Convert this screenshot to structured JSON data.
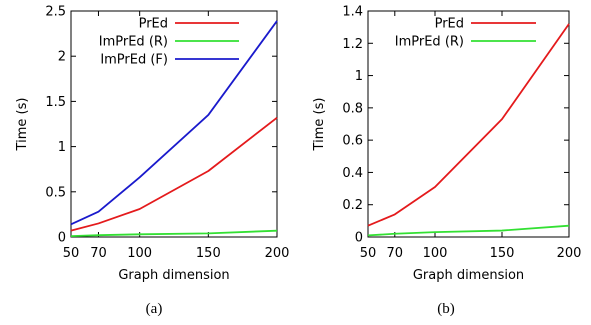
{
  "chart_data": [
    {
      "type": "line",
      "caption": "(a)",
      "xlabel": "Graph dimension",
      "ylabel": "Time (s)",
      "x": [
        50,
        70,
        100,
        150,
        200
      ],
      "xlim": [
        50,
        200
      ],
      "xticks": [
        50,
        70,
        100,
        150,
        200
      ],
      "ylim": [
        0,
        2.5
      ],
      "yticks": [
        "0",
        "0.5",
        "1",
        "1.5",
        "2",
        "2.5"
      ],
      "grid": false,
      "legend_position": "top-left",
      "series": [
        {
          "name": "PrEd",
          "color": "#e41a1c",
          "values": [
            0.07,
            0.15,
            0.31,
            0.73,
            1.32
          ]
        },
        {
          "name": "ImPrEd (R)",
          "color": "#33e033",
          "values": [
            0.01,
            0.02,
            0.03,
            0.04,
            0.07
          ]
        },
        {
          "name": "ImPrEd (F)",
          "color": "#1a1acc",
          "values": [
            0.14,
            0.28,
            0.66,
            1.35,
            2.39
          ]
        }
      ]
    },
    {
      "type": "line",
      "caption": "(b)",
      "xlabel": "Graph dimension",
      "ylabel": "Time (s)",
      "x": [
        50,
        70,
        100,
        150,
        200
      ],
      "xlim": [
        50,
        200
      ],
      "xticks": [
        50,
        70,
        100,
        150,
        200
      ],
      "ylim": [
        0,
        1.4
      ],
      "yticks": [
        "0",
        "0.2",
        "0.4",
        "0.6",
        "0.8",
        "1",
        "1.2",
        "1.4"
      ],
      "grid": false,
      "legend_position": "top-left",
      "series": [
        {
          "name": "PrEd",
          "color": "#e41a1c",
          "values": [
            0.07,
            0.14,
            0.31,
            0.73,
            1.32
          ]
        },
        {
          "name": "ImPrEd (R)",
          "color": "#33e033",
          "values": [
            0.01,
            0.02,
            0.03,
            0.04,
            0.07
          ]
        }
      ]
    }
  ]
}
